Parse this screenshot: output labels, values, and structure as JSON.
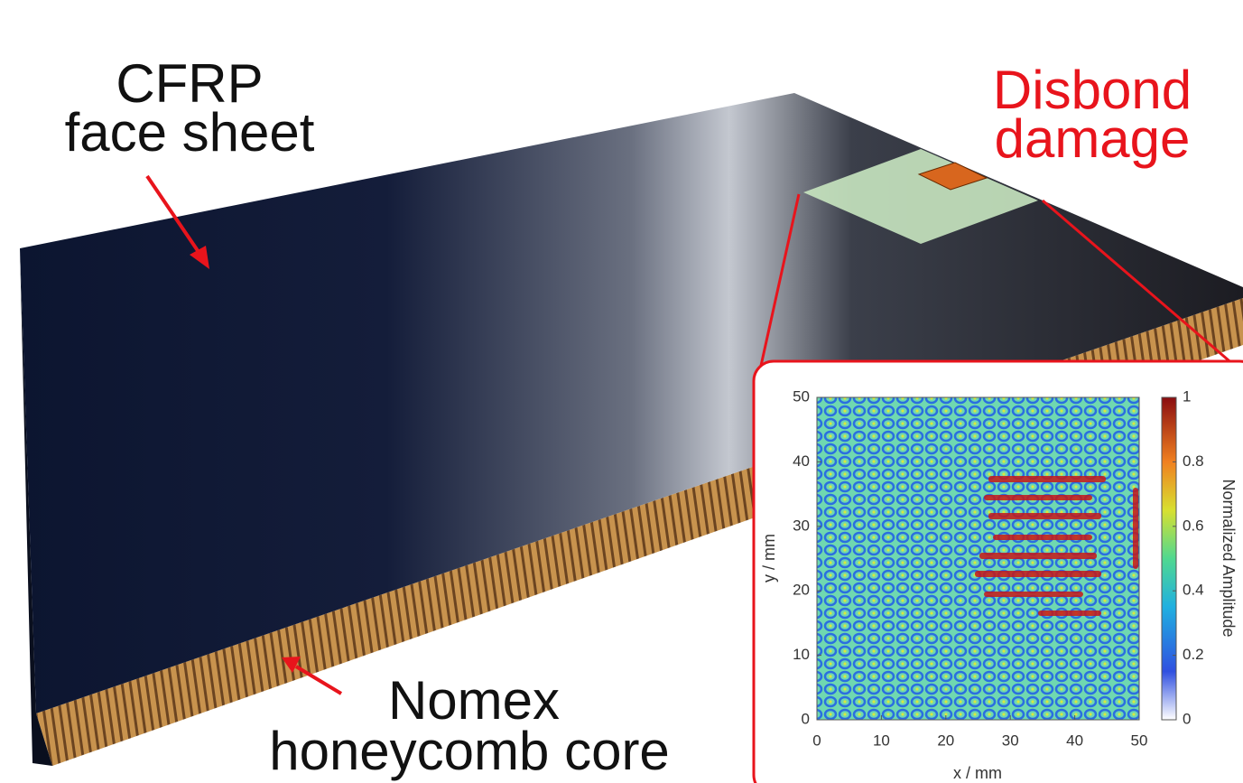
{
  "annotations": {
    "face_sheet": [
      "CFRP",
      "face sheet"
    ],
    "core": [
      "Nomex",
      "honeycomb core"
    ],
    "damage": [
      "Disbond",
      "damage"
    ]
  },
  "inset": {
    "x_label": "x / mm",
    "y_label": "y / mm",
    "colorbar_label": "Normalized Amplitude",
    "xticks": [
      0,
      10,
      20,
      30,
      40,
      50
    ],
    "yticks": [
      0,
      10,
      20,
      30,
      40,
      50
    ],
    "colorbar_ticks": [
      0,
      0.2,
      0.4,
      0.6,
      0.8,
      1
    ]
  }
}
